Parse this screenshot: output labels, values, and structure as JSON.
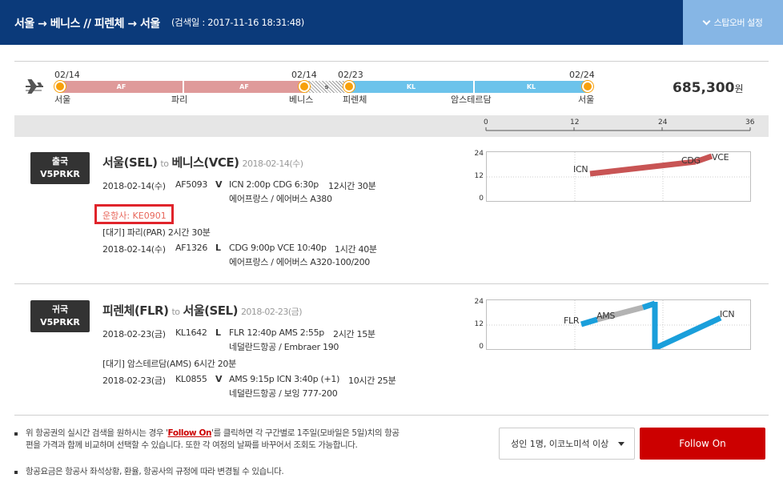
{
  "header": {
    "route": "서울 → 베니스 // 피렌체 → 서울",
    "search_date": "(검색일 : 2017-11-16 18:31:48)",
    "stopover_label": "스탑오버 설정"
  },
  "timeline": {
    "dates": [
      "02/14",
      "02/14",
      "02/23",
      "02/24"
    ],
    "cities": [
      "서울",
      "파리",
      "베니스",
      "피렌체",
      "암스테르담",
      "서울"
    ],
    "segments": [
      "AF",
      "AF",
      "s",
      "KL",
      "KL"
    ],
    "colors": {
      "af": "#df9a9a",
      "kl": "#6cc3eb",
      "dot": "#f7a00b"
    }
  },
  "price": {
    "amount": "685,300",
    "unit": "원"
  },
  "scale": {
    "ticks": [
      "0",
      "12",
      "24",
      "36"
    ]
  },
  "outbound": {
    "badge_top": "출국",
    "badge_code": "V5PRKR",
    "from": "서울(SEL)",
    "to_word": "to",
    "to": "베니스(VCE)",
    "date": "2018-02-14(수)",
    "flights": [
      {
        "date": "2018-02-14(수)",
        "flight": "AF5093",
        "class": "V",
        "route": "ICN 2:00p CDG 6:30p",
        "duration": "12시간 30분",
        "carrier": "에어프랑스 / 에어버스 A380"
      },
      {
        "date": "2018-02-14(수)",
        "flight": "AF1326",
        "class": "L",
        "route": "CDG 9:00p VCE 10:40p",
        "duration": "1시간 40분",
        "carrier": "에어프랑스 / 에어버스 A320-100/200"
      }
    ],
    "operator": "운항사: KE0901",
    "layover": "[대기] 파리(PAR)   2시간 30분",
    "chart": {
      "yticks": [
        "24",
        "12",
        "0"
      ],
      "labels": [
        "ICN",
        "CDG",
        "VCE"
      ]
    }
  },
  "inbound": {
    "badge_top": "귀국",
    "badge_code": "V5PRKR",
    "from": "피렌체(FLR)",
    "to_word": "to",
    "to": "서울(SEL)",
    "date": "2018-02-23(금)",
    "flights": [
      {
        "date": "2018-02-23(금)",
        "flight": "KL1642",
        "class": "L",
        "route": "FLR 12:40p AMS 2:55p",
        "duration": "2시간 15분",
        "carrier": "네덜란드항공 / Embraer 190"
      },
      {
        "date": "2018-02-23(금)",
        "flight": "KL0855",
        "class": "V",
        "route": "AMS 9:15p ICN 3:40p (+1)",
        "duration": "10시간 25분",
        "carrier": "네덜란드항공 / 보잉 777-200"
      }
    ],
    "layover": "[대기] 암스테르담(AMS)   6시간 20분",
    "chart": {
      "yticks": [
        "24",
        "12",
        "0"
      ],
      "labels": [
        "FLR",
        "AMS",
        "ICN"
      ]
    }
  },
  "notes": {
    "note1_pre": "위 항공권의 실시간 검색을 원하시는 경우 '",
    "note1_link": "Follow On",
    "note1_post": "'를 클릭하면 각 구간별로 1주일(모바일은 5일)치의 항공편을 가격과 함께 비교하며 선택할 수 있습니다. 또한 각 여정의 날짜를 바꾸어서 조회도 가능합니다.",
    "note2": "항공요금은 항공사 좌석상황, 환율, 항공사의 규정에 따라 변경될 수 있습니다."
  },
  "footer": {
    "pax_select": "성인 1명, 이코노미석 이상",
    "follow_on": "Follow On"
  }
}
